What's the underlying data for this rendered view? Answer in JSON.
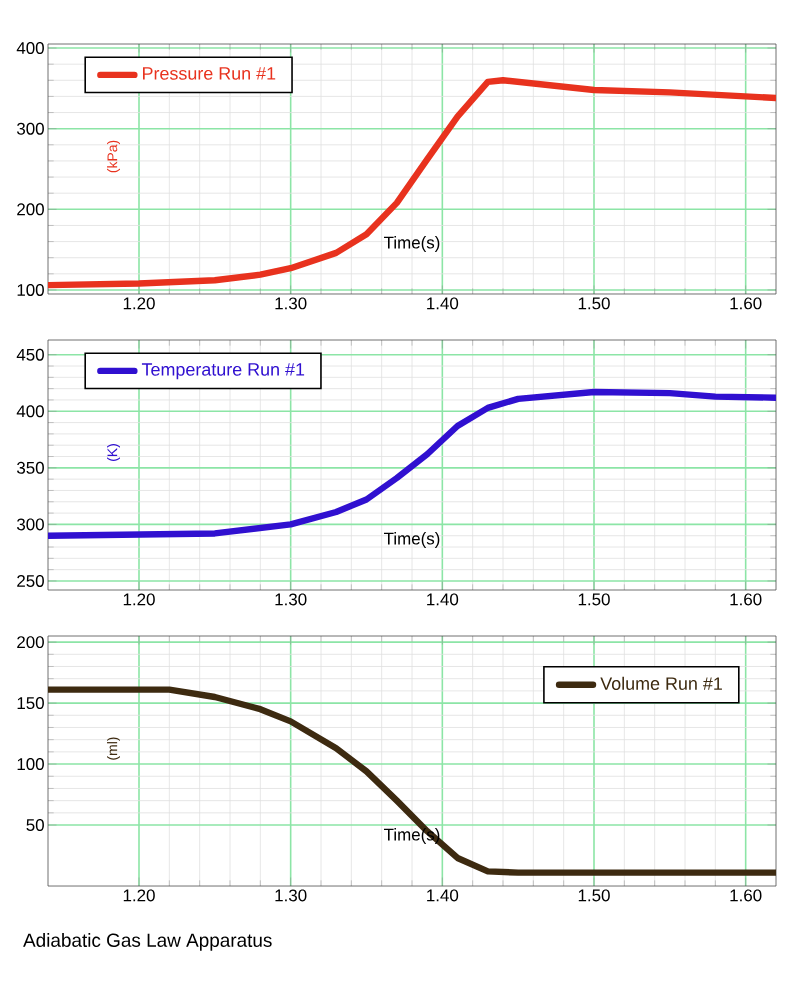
{
  "chart_data": [
    {
      "type": "line",
      "xlabel": "Time(s)",
      "ylabel": "(kPa)",
      "xlim": [
        1.14,
        1.62
      ],
      "ylim": [
        95,
        405
      ],
      "xticks": [
        {
          "value": 1.2,
          "label": "1.20"
        },
        {
          "value": 1.3,
          "label": "1.30"
        },
        {
          "value": 1.4,
          "label": "1.40"
        },
        {
          "value": 1.5,
          "label": "1.50"
        },
        {
          "value": 1.6,
          "label": "1.60"
        }
      ],
      "yticks": [
        100,
        200,
        300,
        400
      ],
      "grid": true,
      "legend": "top left",
      "series": [
        {
          "name": "Pressure Run #1",
          "color": "#e8321e",
          "x": [
            1.14,
            1.2,
            1.25,
            1.28,
            1.3,
            1.33,
            1.35,
            1.37,
            1.39,
            1.41,
            1.43,
            1.44,
            1.5,
            1.55,
            1.62
          ],
          "values": [
            106,
            108,
            112,
            119,
            127,
            146,
            169,
            208,
            262,
            315,
            358,
            360,
            348,
            345,
            338
          ]
        }
      ]
    },
    {
      "type": "line",
      "xlabel": "Time(s)",
      "ylabel": "(K)",
      "xlim": [
        1.14,
        1.62
      ],
      "ylim": [
        242,
        463
      ],
      "xticks": [
        {
          "value": 1.2,
          "label": "1.20"
        },
        {
          "value": 1.3,
          "label": "1.30"
        },
        {
          "value": 1.4,
          "label": "1.40"
        },
        {
          "value": 1.5,
          "label": "1.50"
        },
        {
          "value": 1.6,
          "label": "1.60"
        }
      ],
      "yticks": [
        250,
        300,
        350,
        400,
        450
      ],
      "grid": true,
      "legend": "top left",
      "series": [
        {
          "name": "Temperature Run #1",
          "color": "#3010d0",
          "x": [
            1.14,
            1.25,
            1.3,
            1.33,
            1.35,
            1.37,
            1.39,
            1.41,
            1.43,
            1.45,
            1.5,
            1.55,
            1.58,
            1.62
          ],
          "values": [
            290,
            292,
            300,
            311,
            322,
            341,
            362,
            387,
            403,
            411,
            417,
            416,
            413,
            412
          ]
        }
      ]
    },
    {
      "type": "line",
      "xlabel": "Time(s)",
      "ylabel": "(ml)",
      "xlim": [
        1.14,
        1.62
      ],
      "ylim": [
        0,
        205
      ],
      "xticks": [
        {
          "value": 1.2,
          "label": "1.20"
        },
        {
          "value": 1.3,
          "label": "1.30"
        },
        {
          "value": 1.4,
          "label": "1.40"
        },
        {
          "value": 1.5,
          "label": "1.50"
        },
        {
          "value": 1.6,
          "label": "1.60"
        }
      ],
      "yticks": [
        50,
        100,
        150,
        200
      ],
      "grid": true,
      "legend": "top right",
      "annotations": [
        "Adiabatic Gas Law Apparatus"
      ],
      "series": [
        {
          "name": "Volume Run #1",
          "color": "#3d2a10",
          "x": [
            1.14,
            1.22,
            1.25,
            1.28,
            1.3,
            1.33,
            1.35,
            1.37,
            1.39,
            1.41,
            1.43,
            1.45,
            1.62
          ],
          "values": [
            161,
            161,
            155,
            145,
            135,
            113,
            94,
            70,
            45,
            23,
            12,
            11,
            11
          ]
        }
      ]
    }
  ]
}
